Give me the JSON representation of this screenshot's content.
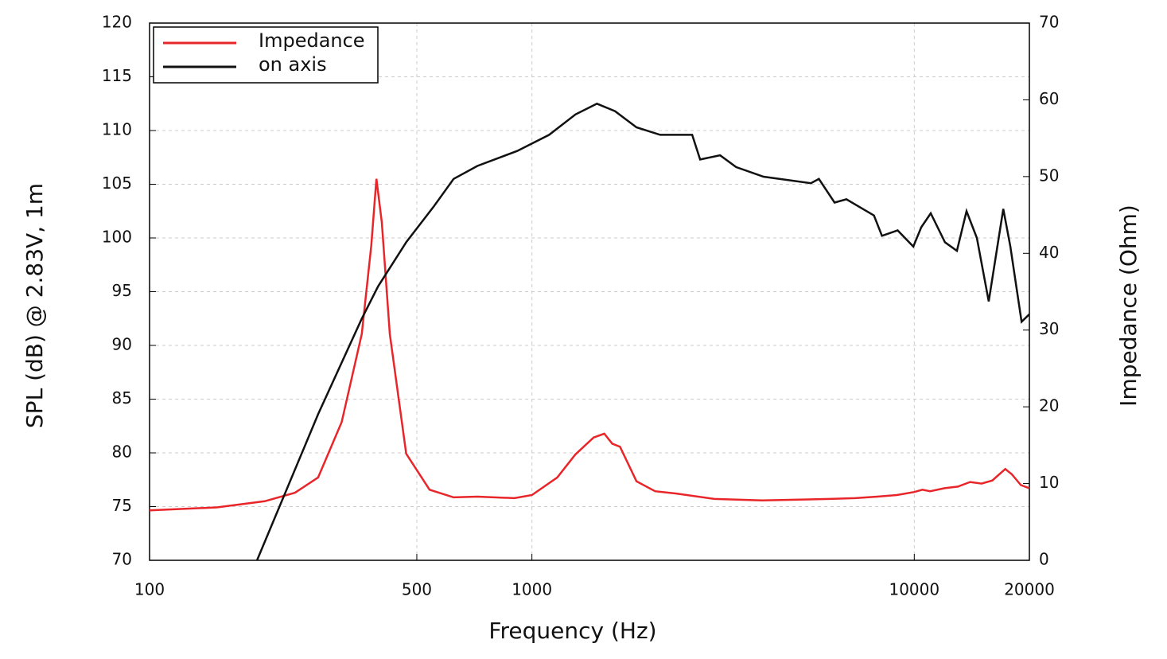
{
  "chart_data": {
    "type": "line",
    "x_label": "Frequency (Hz)",
    "y_label": "SPL (dB) @ 2.83V, 1m",
    "y2_label": "Impedance (Ohm)",
    "xscale": "log",
    "xlim": [
      100,
      20000
    ],
    "xticks": [
      100,
      500,
      1000,
      10000,
      20000
    ],
    "ylim": [
      70,
      120
    ],
    "yticks": [
      70,
      75,
      80,
      85,
      90,
      95,
      100,
      105,
      110,
      115,
      120
    ],
    "y2lim": [
      0,
      70
    ],
    "y2ticks": [
      0,
      10,
      20,
      30,
      40,
      50,
      60,
      70
    ],
    "grid": true,
    "legend": "upper left",
    "series": [
      {
        "name": "Impedance",
        "color": "#e8262a",
        "axis": "y2",
        "x": [
          100,
          150,
          200,
          240,
          276,
          318,
          359,
          380,
          392,
          405,
          425,
          469,
          540,
          624,
          720,
          900,
          1000,
          1165,
          1300,
          1450,
          1546,
          1622,
          1700,
          1877,
          2100,
          2386,
          3000,
          4000,
          5000,
          6000,
          7000,
          8000,
          9000,
          10000,
          10500,
          11000,
          12000,
          13000,
          14000,
          15000,
          16000,
          17300,
          18000,
          19000,
          20000
        ],
        "values": [
          6.5,
          6.9,
          7.7,
          8.8,
          10.8,
          18,
          29.5,
          41,
          49.7,
          44,
          29.5,
          13.9,
          9.2,
          8.2,
          8.3,
          8.1,
          8.5,
          10.8,
          13.8,
          16.0,
          16.5,
          15.2,
          14.8,
          10.3,
          9.0,
          8.7,
          8.0,
          7.8,
          7.9,
          8.0,
          8.1,
          8.3,
          8.5,
          8.9,
          9.2,
          9.0,
          9.4,
          9.6,
          10.2,
          10.0,
          10.4,
          11.9,
          11.2,
          9.8,
          9.4
        ]
      },
      {
        "name": "on axis",
        "color": "#111111",
        "axis": "y",
        "x": [
          191,
          276,
          359,
          396,
          469,
          553,
          624,
          720,
          915,
          1109,
          1300,
          1479,
          1650,
          1877,
          2165,
          2625,
          2754,
          3106,
          3420,
          4034,
          5364,
          5631,
          6188,
          6645,
          7845,
          8234,
          9048,
          9944,
          10430,
          11040,
          12030,
          12930,
          13700,
          14580,
          15660,
          17090,
          17840,
          19080,
          20000
        ],
        "values": [
          70,
          83.6,
          92.5,
          95.5,
          99.6,
          102.9,
          105.5,
          106.7,
          108.1,
          109.6,
          111.5,
          112.5,
          111.8,
          110.3,
          109.6,
          109.6,
          107.3,
          107.7,
          106.6,
          105.7,
          105.1,
          105.5,
          103.3,
          103.6,
          102.1,
          100.2,
          100.7,
          99.2,
          101,
          102.3,
          99.6,
          98.8,
          102.5,
          100,
          94.1,
          102.7,
          99.2,
          92.2,
          92.9
        ]
      }
    ]
  }
}
